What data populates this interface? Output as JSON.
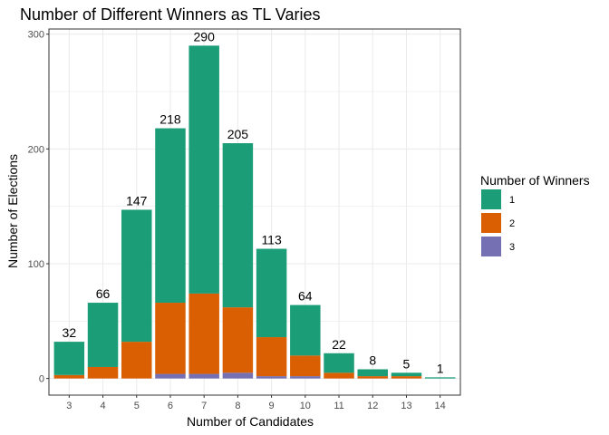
{
  "chart_data": {
    "type": "bar",
    "stacked": true,
    "title": "Number of Different Winners as TL Varies",
    "xlabel": "Number of Candidates",
    "ylabel": "Number of Elections",
    "categories": [
      "3",
      "4",
      "5",
      "6",
      "7",
      "8",
      "9",
      "10",
      "11",
      "12",
      "13",
      "14"
    ],
    "series": [
      {
        "name": "1",
        "color": "#1b9e77",
        "values": [
          29,
          56,
          115,
          152,
          216,
          143,
          77,
          44,
          17,
          6,
          3,
          1
        ]
      },
      {
        "name": "2",
        "color": "#d95f02",
        "values": [
          3,
          10,
          32,
          62,
          70,
          57,
          34,
          18,
          5,
          2,
          2,
          0
        ]
      },
      {
        "name": "3",
        "color": "#7570b3",
        "values": [
          0,
          0,
          0,
          4,
          4,
          5,
          2,
          2,
          0,
          0,
          0,
          0
        ]
      }
    ],
    "totals": [
      32,
      66,
      147,
      218,
      290,
      205,
      113,
      64,
      22,
      8,
      5,
      1
    ],
    "yticks": [
      0,
      100,
      200,
      300
    ],
    "ylim": [
      -14.5,
      304.5
    ],
    "grid": true,
    "legend": {
      "title": "Number of Winners",
      "placement": "right"
    },
    "panel_background": "#ffffff",
    "gridline_color": "#ebebeb"
  }
}
